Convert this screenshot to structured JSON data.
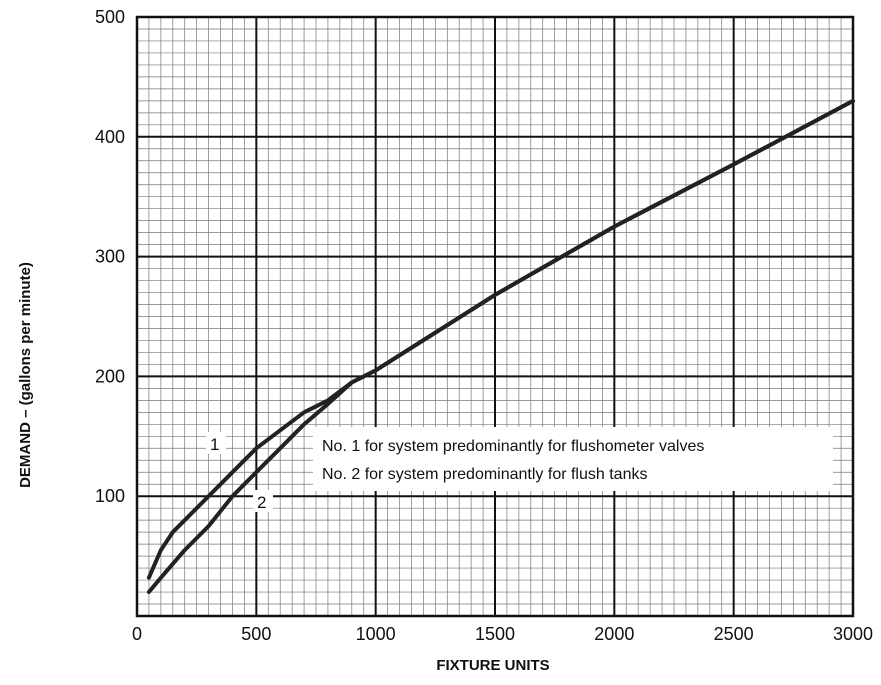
{
  "chart_data": {
    "type": "line",
    "title": "",
    "xlabel": "FIXTURE UNITS",
    "ylabel": "DEMAND – (gallons per minute)",
    "xlim": [
      0,
      3000
    ],
    "ylim": [
      0,
      500
    ],
    "x_ticks": [
      "0",
      "500",
      "1000",
      "1500",
      "2000",
      "2500",
      "3000"
    ],
    "y_ticks": [
      "100",
      "200",
      "300",
      "400",
      "500"
    ],
    "x_tick_values": [
      0,
      500,
      1000,
      1500,
      2000,
      2500,
      3000
    ],
    "y_tick_values": [
      100,
      200,
      300,
      400,
      500
    ],
    "grid": true,
    "series": [
      {
        "name": "1",
        "x": [
          50,
          100,
          150,
          200,
          300,
          400,
          500,
          600,
          700,
          800,
          900,
          1000,
          1500,
          2000,
          2500,
          3000
        ],
        "y": [
          32,
          55,
          70,
          80,
          100,
          120,
          140,
          155,
          170,
          180,
          195,
          205,
          268,
          325,
          377,
          430
        ]
      },
      {
        "name": "2",
        "x": [
          50,
          100,
          200,
          300,
          400,
          500,
          600,
          700,
          800,
          900,
          1000,
          1500,
          2000,
          2500,
          3000
        ],
        "y": [
          20,
          32,
          55,
          75,
          100,
          120,
          140,
          160,
          177,
          195,
          205,
          268,
          325,
          377,
          430
        ]
      }
    ],
    "annotations": [
      "No. 1 for system predominantly for flushometer valves",
      "No. 2 for system predominantly for flush tanks"
    ]
  }
}
